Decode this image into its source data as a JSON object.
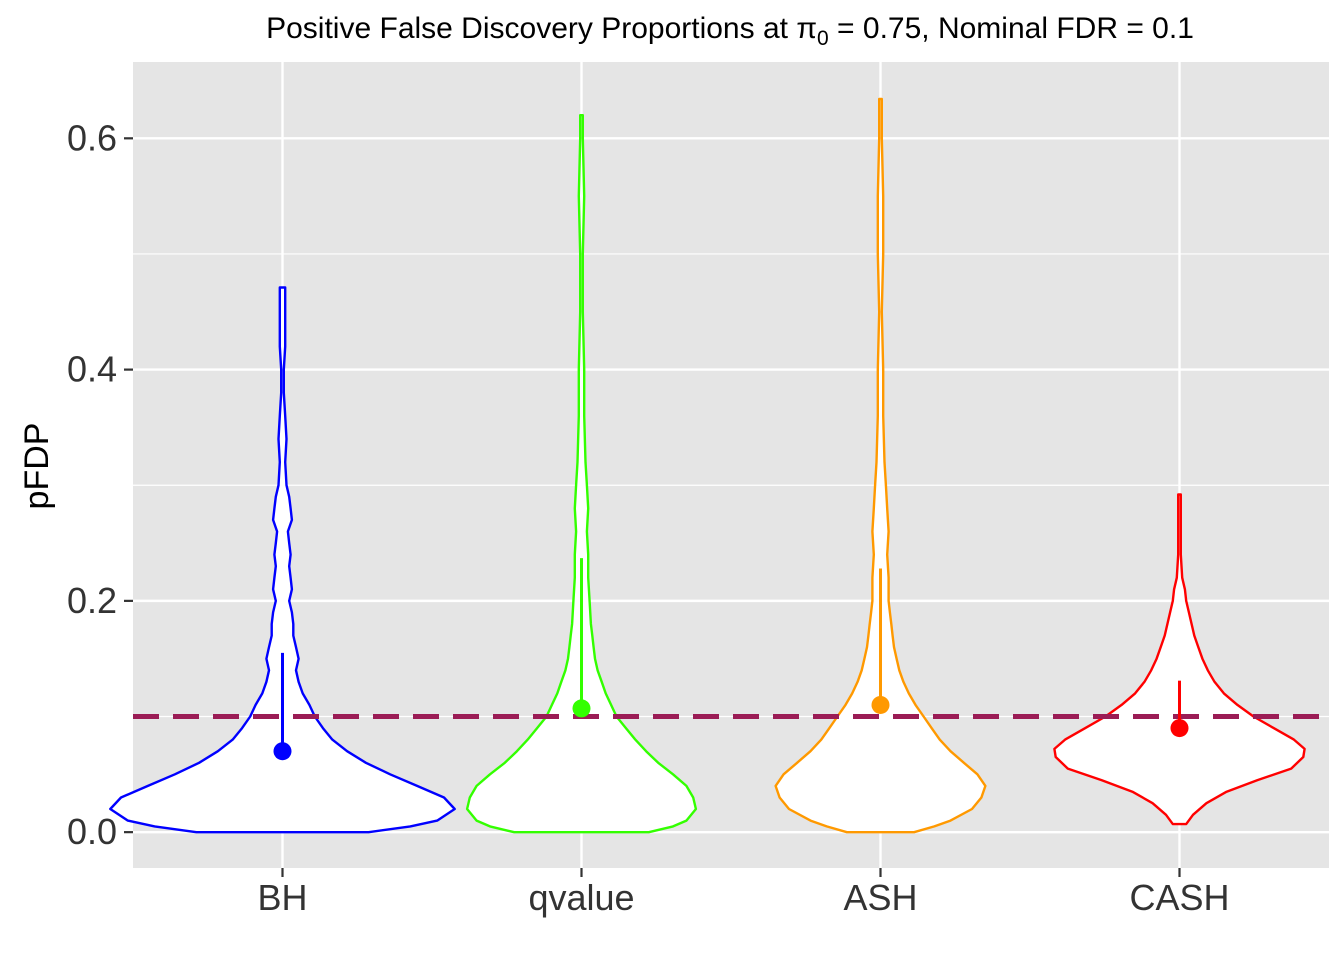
{
  "chart_data": {
    "type": "violin",
    "title": {
      "prefix": "Positive False Discovery Proportions at ",
      "symbol": "π",
      "subscript": "0",
      "suffix": " = 0.75, Nominal FDR = 0.1"
    },
    "xlabel": "",
    "ylabel": "pFDP",
    "ylim": [
      -0.031,
      0.666
    ],
    "yticks": [
      0.0,
      0.2,
      0.4,
      0.6
    ],
    "ytick_labels": [
      "0.0",
      "0.2",
      "0.4",
      "0.6"
    ],
    "grid": true,
    "legend": "none",
    "reference_line": {
      "y": 0.1,
      "style": "dashed",
      "color": "#9b1c55"
    },
    "categories": [
      "BH",
      "qvalue",
      "ASH",
      "CASH"
    ],
    "series": [
      {
        "name": "BH",
        "color": "#0000ff",
        "mean": 0.07,
        "interval": [
          0.07,
          0.155
        ],
        "violin": [
          [
            0.0,
            0.64
          ],
          [
            0.005,
            0.95
          ],
          [
            0.01,
            1.15
          ],
          [
            0.02,
            1.28
          ],
          [
            0.03,
            1.2
          ],
          [
            0.04,
            1.0
          ],
          [
            0.05,
            0.8
          ],
          [
            0.06,
            0.62
          ],
          [
            0.07,
            0.48
          ],
          [
            0.08,
            0.37
          ],
          [
            0.09,
            0.3
          ],
          [
            0.1,
            0.24
          ],
          [
            0.11,
            0.2
          ],
          [
            0.12,
            0.15
          ],
          [
            0.13,
            0.12
          ],
          [
            0.14,
            0.1
          ],
          [
            0.15,
            0.12
          ],
          [
            0.16,
            0.1
          ],
          [
            0.17,
            0.08
          ],
          [
            0.18,
            0.08
          ],
          [
            0.19,
            0.07
          ],
          [
            0.2,
            0.05
          ],
          [
            0.21,
            0.07
          ],
          [
            0.22,
            0.06
          ],
          [
            0.23,
            0.05
          ],
          [
            0.24,
            0.06
          ],
          [
            0.25,
            0.05
          ],
          [
            0.26,
            0.04
          ],
          [
            0.27,
            0.07
          ],
          [
            0.28,
            0.06
          ],
          [
            0.29,
            0.05
          ],
          [
            0.3,
            0.03
          ],
          [
            0.32,
            0.02
          ],
          [
            0.34,
            0.03
          ],
          [
            0.36,
            0.02
          ],
          [
            0.38,
            0.01
          ],
          [
            0.4,
            0.01
          ],
          [
            0.42,
            0.02
          ],
          [
            0.44,
            0.02
          ],
          [
            0.46,
            0.02
          ],
          [
            0.471,
            0.02
          ]
        ]
      },
      {
        "name": "qvalue",
        "color": "#33ff00",
        "mean": 0.107,
        "interval": [
          0.107,
          0.237
        ],
        "violin": [
          [
            0.0,
            0.5
          ],
          [
            0.005,
            0.68
          ],
          [
            0.01,
            0.78
          ],
          [
            0.02,
            0.85
          ],
          [
            0.03,
            0.83
          ],
          [
            0.04,
            0.78
          ],
          [
            0.05,
            0.68
          ],
          [
            0.06,
            0.57
          ],
          [
            0.07,
            0.48
          ],
          [
            0.08,
            0.4
          ],
          [
            0.09,
            0.33
          ],
          [
            0.1,
            0.26
          ],
          [
            0.11,
            0.22
          ],
          [
            0.12,
            0.18
          ],
          [
            0.13,
            0.15
          ],
          [
            0.14,
            0.12
          ],
          [
            0.15,
            0.1
          ],
          [
            0.16,
            0.09
          ],
          [
            0.17,
            0.08
          ],
          [
            0.18,
            0.07
          ],
          [
            0.2,
            0.06
          ],
          [
            0.22,
            0.05
          ],
          [
            0.24,
            0.05
          ],
          [
            0.26,
            0.04
          ],
          [
            0.28,
            0.05
          ],
          [
            0.3,
            0.04
          ],
          [
            0.32,
            0.03
          ],
          [
            0.36,
            0.02
          ],
          [
            0.4,
            0.02
          ],
          [
            0.45,
            0.01
          ],
          [
            0.5,
            0.01
          ],
          [
            0.55,
            0.02
          ],
          [
            0.6,
            0.01
          ],
          [
            0.62,
            0.01
          ]
        ]
      },
      {
        "name": "ASH",
        "color": "#ff9900",
        "mean": 0.11,
        "interval": [
          0.11,
          0.228
        ],
        "violin": [
          [
            0.0,
            0.25
          ],
          [
            0.005,
            0.4
          ],
          [
            0.01,
            0.52
          ],
          [
            0.02,
            0.68
          ],
          [
            0.03,
            0.75
          ],
          [
            0.04,
            0.78
          ],
          [
            0.05,
            0.72
          ],
          [
            0.06,
            0.62
          ],
          [
            0.07,
            0.52
          ],
          [
            0.08,
            0.44
          ],
          [
            0.09,
            0.38
          ],
          [
            0.1,
            0.32
          ],
          [
            0.11,
            0.26
          ],
          [
            0.12,
            0.21
          ],
          [
            0.13,
            0.17
          ],
          [
            0.14,
            0.14
          ],
          [
            0.15,
            0.12
          ],
          [
            0.16,
            0.1
          ],
          [
            0.17,
            0.09
          ],
          [
            0.18,
            0.08
          ],
          [
            0.19,
            0.07
          ],
          [
            0.2,
            0.06
          ],
          [
            0.22,
            0.06
          ],
          [
            0.24,
            0.05
          ],
          [
            0.26,
            0.06
          ],
          [
            0.28,
            0.05
          ],
          [
            0.3,
            0.04
          ],
          [
            0.32,
            0.03
          ],
          [
            0.36,
            0.02
          ],
          [
            0.4,
            0.02
          ],
          [
            0.45,
            0.01
          ],
          [
            0.5,
            0.02
          ],
          [
            0.55,
            0.02
          ],
          [
            0.6,
            0.01
          ],
          [
            0.634,
            0.01
          ]
        ]
      },
      {
        "name": "CASH",
        "color": "#ff0000",
        "mean": 0.09,
        "interval": [
          0.09,
          0.131
        ],
        "violin": [
          [
            0.007,
            0.05
          ],
          [
            0.015,
            0.1
          ],
          [
            0.025,
            0.2
          ],
          [
            0.035,
            0.35
          ],
          [
            0.045,
            0.58
          ],
          [
            0.055,
            0.83
          ],
          [
            0.065,
            0.92
          ],
          [
            0.072,
            0.93
          ],
          [
            0.08,
            0.85
          ],
          [
            0.09,
            0.7
          ],
          [
            0.1,
            0.55
          ],
          [
            0.11,
            0.43
          ],
          [
            0.12,
            0.33
          ],
          [
            0.13,
            0.26
          ],
          [
            0.14,
            0.21
          ],
          [
            0.15,
            0.17
          ],
          [
            0.16,
            0.14
          ],
          [
            0.17,
            0.11
          ],
          [
            0.18,
            0.09
          ],
          [
            0.19,
            0.07
          ],
          [
            0.2,
            0.05
          ],
          [
            0.21,
            0.04
          ],
          [
            0.22,
            0.02
          ],
          [
            0.24,
            0.01
          ],
          [
            0.26,
            0.01
          ],
          [
            0.292,
            0.01
          ]
        ]
      }
    ]
  }
}
